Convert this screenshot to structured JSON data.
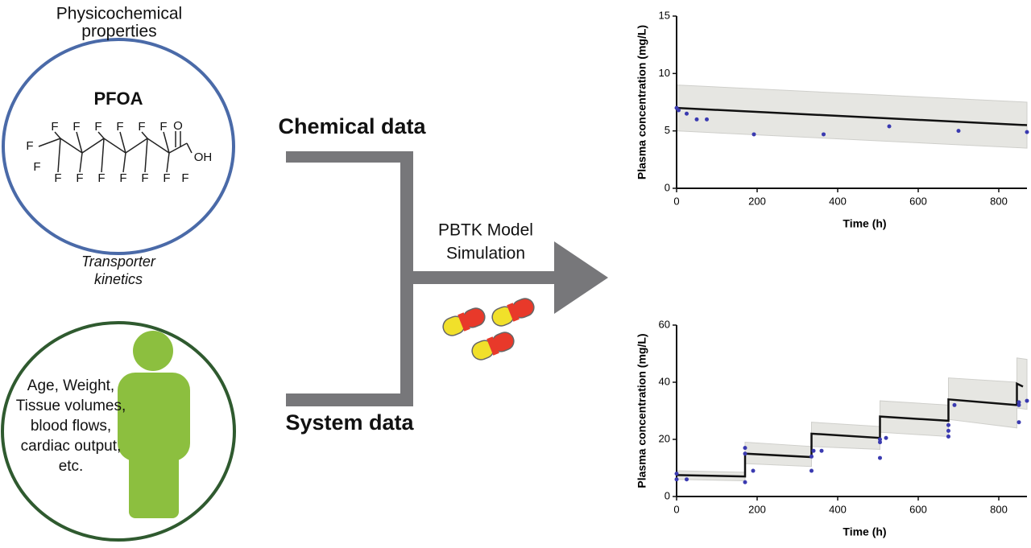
{
  "diagram": {
    "physchem": [
      "Physicochemical",
      "properties"
    ],
    "compound": "PFOA",
    "atoms": [
      "F",
      "F",
      "F",
      "F",
      "F",
      "F",
      "F",
      "F",
      "F",
      "F",
      "F",
      "F",
      "F",
      "F",
      "F",
      "O",
      "OH"
    ],
    "transporter": [
      "Transporter",
      "kinetics"
    ],
    "chemical_data": "Chemical data",
    "system_data": "System data",
    "model": [
      "PBTK Model",
      "Simulation"
    ],
    "system_text": [
      "Age, Weight,",
      "Tissue volumes,",
      "blood flows,",
      "cardiac output,",
      "etc."
    ]
  },
  "chart_data": [
    {
      "type": "line",
      "x_label": "Time (h)",
      "y_label": "Plasma concentration (mg/L)",
      "xlim": [
        0,
        870
      ],
      "xticks": [
        0,
        200,
        400,
        600,
        800
      ],
      "ylim": [
        0,
        15
      ],
      "yticks": [
        0,
        5,
        10,
        15
      ],
      "band": {
        "color": "#e6e6e2",
        "x": [
          0,
          870
        ],
        "upper": [
          9,
          7.5
        ],
        "lower": [
          5,
          3.5
        ]
      },
      "line": {
        "color": "#111111",
        "x": [
          0,
          870
        ],
        "values": [
          7,
          5.5
        ]
      },
      "points": {
        "color": "#3a3ab0",
        "x": [
          0,
          5,
          25,
          50,
          75,
          192,
          365,
          528,
          700,
          870
        ],
        "y": [
          7,
          6.8,
          6.5,
          6,
          6,
          4.7,
          4.7,
          5.4,
          5,
          4.9
        ]
      }
    },
    {
      "type": "line",
      "x_label": "Time (h)",
      "y_label": "Plasma concentration (mg/L)",
      "xlim": [
        0,
        870
      ],
      "xticks": [
        0,
        200,
        400,
        600,
        800
      ],
      "ylim": [
        0,
        60
      ],
      "yticks": [
        0,
        20,
        40,
        60
      ],
      "band": {
        "color": "#e6e6e2",
        "x": [
          0,
          170,
          170,
          335,
          335,
          505,
          505,
          675,
          675,
          845,
          845,
          870
        ],
        "upper": [
          9,
          8.5,
          19,
          17.5,
          26,
          24.5,
          33.5,
          32,
          41.5,
          40,
          48.5,
          48
        ],
        "lower": [
          6,
          5.5,
          11.5,
          10.5,
          17.5,
          16.5,
          22.5,
          21,
          27,
          24,
          31,
          30.5
        ]
      },
      "line": {
        "color": "#111111",
        "x": [
          0,
          170,
          170,
          335,
          335,
          505,
          505,
          675,
          675,
          845,
          845,
          860
        ],
        "values": [
          7.5,
          7,
          15,
          13.8,
          22,
          20.5,
          28,
          26.5,
          34,
          32,
          39.5,
          38.5
        ]
      },
      "points": {
        "color": "#3a3ab0",
        "x": [
          0,
          0,
          25,
          170,
          170,
          170,
          190,
          335,
          335,
          340,
          360,
          505,
          505,
          505,
          520,
          675,
          675,
          675,
          690,
          850,
          850,
          850,
          870
        ],
        "y": [
          8,
          6,
          6,
          5,
          15,
          17,
          9,
          9,
          14,
          16,
          16,
          13.5,
          19,
          20,
          20.5,
          21,
          23,
          25,
          32,
          26,
          32,
          33,
          33.5
        ]
      }
    }
  ]
}
